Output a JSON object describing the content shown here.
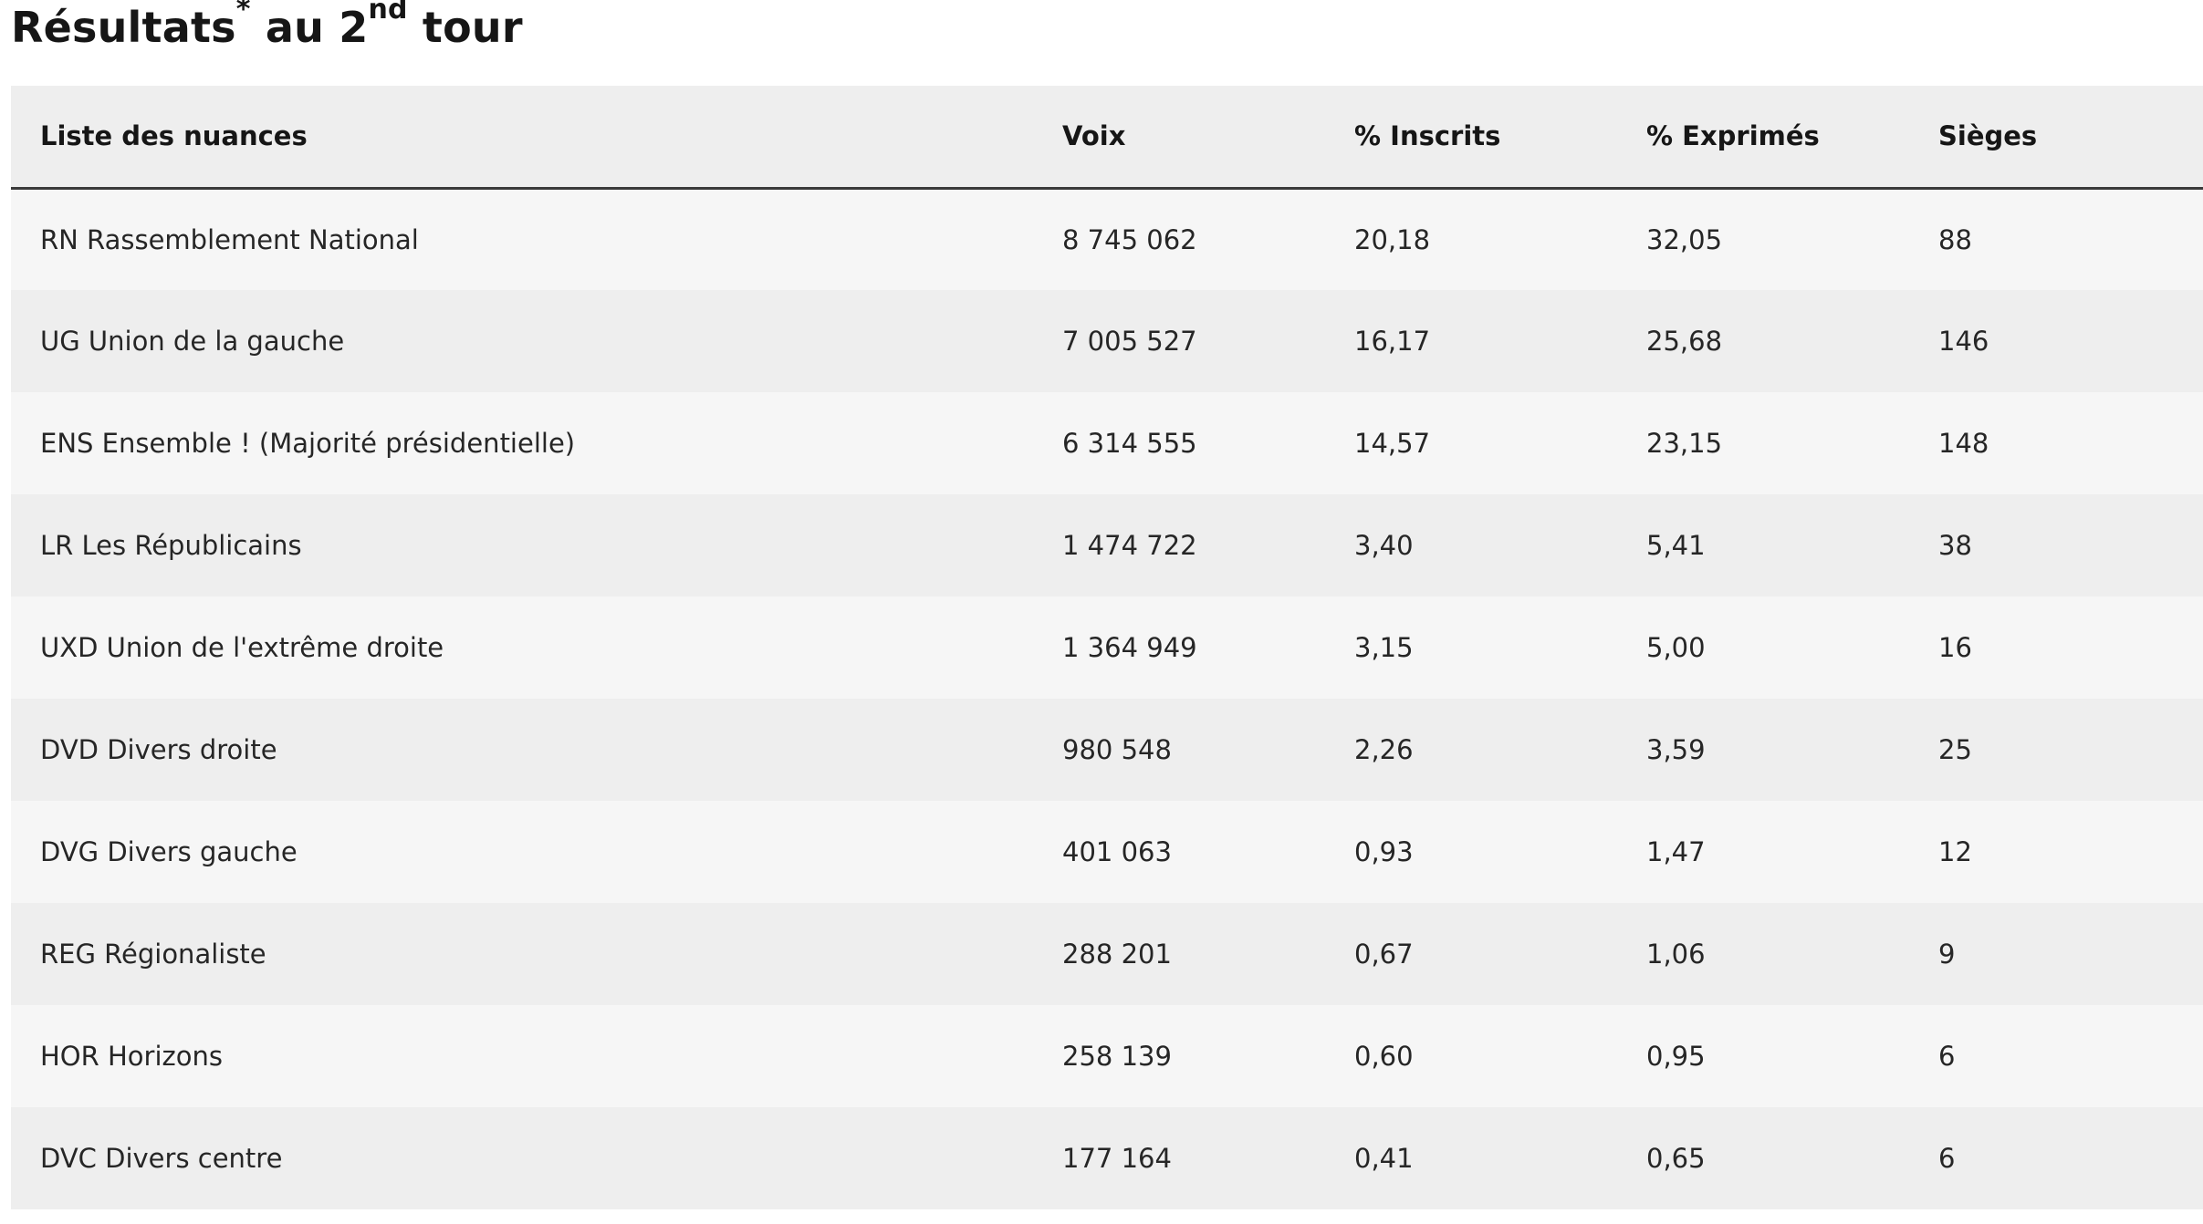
{
  "title": {
    "main": "Résultats",
    "asterisk": "*",
    "middle": " au 2",
    "ordinal": "nd",
    "end": " tour"
  },
  "table": {
    "headers": {
      "nuance": "Liste des nuances",
      "voix": "Voix",
      "inscrits": "% Inscrits",
      "exprimes": "% Exprimés",
      "sieges": "Sièges"
    },
    "rows": [
      {
        "nuance": "RN Rassemblement National",
        "voix": "8 745 062",
        "inscrits": "20,18",
        "exprimes": "32,05",
        "sieges": "88"
      },
      {
        "nuance": "UG Union de la gauche",
        "voix": "7 005 527",
        "inscrits": "16,17",
        "exprimes": "25,68",
        "sieges": "146"
      },
      {
        "nuance": "ENS Ensemble ! (Majorité présidentielle)",
        "voix": "6 314 555",
        "inscrits": "14,57",
        "exprimes": "23,15",
        "sieges": "148"
      },
      {
        "nuance": "LR Les Républicains",
        "voix": "1 474 722",
        "inscrits": "3,40",
        "exprimes": "5,41",
        "sieges": "38"
      },
      {
        "nuance": "UXD Union de l'extrême droite",
        "voix": "1 364 949",
        "inscrits": "3,15",
        "exprimes": "5,00",
        "sieges": "16"
      },
      {
        "nuance": "DVD Divers droite",
        "voix": "980 548",
        "inscrits": "2,26",
        "exprimes": "3,59",
        "sieges": "25"
      },
      {
        "nuance": "DVG Divers gauche",
        "voix": "401 063",
        "inscrits": "0,93",
        "exprimes": "1,47",
        "sieges": "12"
      },
      {
        "nuance": "REG Régionaliste",
        "voix": "288 201",
        "inscrits": "0,67",
        "exprimes": "1,06",
        "sieges": "9"
      },
      {
        "nuance": "HOR Horizons",
        "voix": "258 139",
        "inscrits": "0,60",
        "exprimes": "0,95",
        "sieges": "6"
      },
      {
        "nuance": "DVC Divers centre",
        "voix": "177 164",
        "inscrits": "0,41",
        "exprimes": "0,65",
        "sieges": "6"
      }
    ]
  }
}
